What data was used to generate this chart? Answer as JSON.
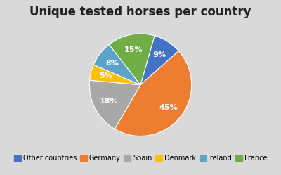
{
  "title": "Unique tested horses per country",
  "slices": [
    {
      "label": "Other countries",
      "pct": 9,
      "color": "#4472C4"
    },
    {
      "label": "Germany",
      "pct": 45,
      "color": "#ED7D31"
    },
    {
      "label": "Spain",
      "pct": 18,
      "color": "#A8A8A8"
    },
    {
      "label": "Denmark",
      "pct": 5,
      "color": "#FFC000"
    },
    {
      "label": "Ireland",
      "pct": 8,
      "color": "#5BA3C9"
    },
    {
      "label": "France",
      "pct": 15,
      "color": "#70AD47"
    }
  ],
  "background_color": "#D9D9D9",
  "title_fontsize": 12,
  "label_fontsize": 8,
  "legend_fontsize": 7,
  "startangle": 74
}
